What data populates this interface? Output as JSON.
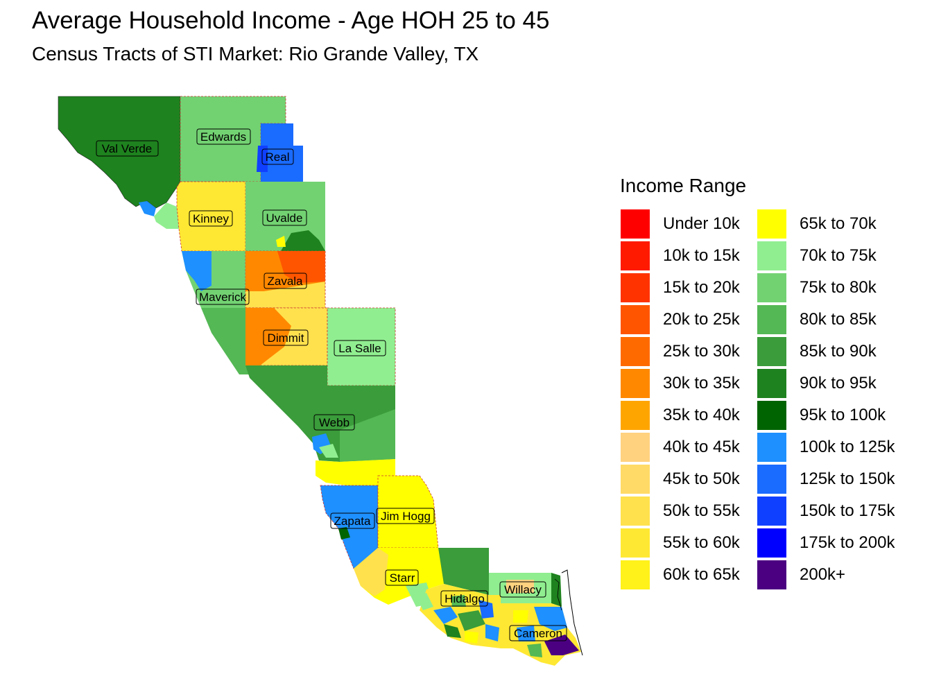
{
  "title": "Average Household Income - Age HOH 25 to 45",
  "subtitle": "Census Tracts of STI Market: Rio Grande Valley, TX",
  "legend": {
    "title": "Income Range",
    "items": [
      {
        "label": "Under 10k",
        "color": "#FF0000"
      },
      {
        "label": "10k to 15k",
        "color": "#FF1A00"
      },
      {
        "label": "15k to 20k",
        "color": "#FF3300"
      },
      {
        "label": "20k to 25k",
        "color": "#FF5500"
      },
      {
        "label": "25k to 30k",
        "color": "#FF6A00"
      },
      {
        "label": "30k to 35k",
        "color": "#FF8800"
      },
      {
        "label": "35k to 40k",
        "color": "#FFA500"
      },
      {
        "label": "40k to 45k",
        "color": "#FFD27F"
      },
      {
        "label": "45k to 50k",
        "color": "#FFDA66"
      },
      {
        "label": "50k to 55k",
        "color": "#FFE14D"
      },
      {
        "label": "55k to 60k",
        "color": "#FFE833"
      },
      {
        "label": "60k to 65k",
        "color": "#FFF21A"
      },
      {
        "label": "65k to 70k",
        "color": "#FFFF00"
      },
      {
        "label": "70k to 75k",
        "color": "#90EE90"
      },
      {
        "label": "75k to 80k",
        "color": "#72D272"
      },
      {
        "label": "80k to 85k",
        "color": "#54B854"
      },
      {
        "label": "85k to 90k",
        "color": "#3A9C3A"
      },
      {
        "label": "90k to 95k",
        "color": "#1E821E"
      },
      {
        "label": "95k to 100k",
        "color": "#006400"
      },
      {
        "label": "100k to 125k",
        "color": "#1E90FF"
      },
      {
        "label": "125k to 150k",
        "color": "#1A6BFF"
      },
      {
        "label": "150k to 175k",
        "color": "#1040FF"
      },
      {
        "label": "175k to 200k",
        "color": "#0000FF"
      },
      {
        "label": "200k+",
        "color": "#4B0082"
      }
    ]
  },
  "counties": [
    {
      "name": "Val Verde"
    },
    {
      "name": "Edwards"
    },
    {
      "name": "Real"
    },
    {
      "name": "Kinney"
    },
    {
      "name": "Uvalde"
    },
    {
      "name": "Zavala"
    },
    {
      "name": "Maverick"
    },
    {
      "name": "Dimmit"
    },
    {
      "name": "La Salle"
    },
    {
      "name": "Webb"
    },
    {
      "name": "Zapata"
    },
    {
      "name": "Jim Hogg"
    },
    {
      "name": "Starr"
    },
    {
      "name": "Hidalgo"
    },
    {
      "name": "Willacy"
    },
    {
      "name": "Cameron"
    }
  ]
}
